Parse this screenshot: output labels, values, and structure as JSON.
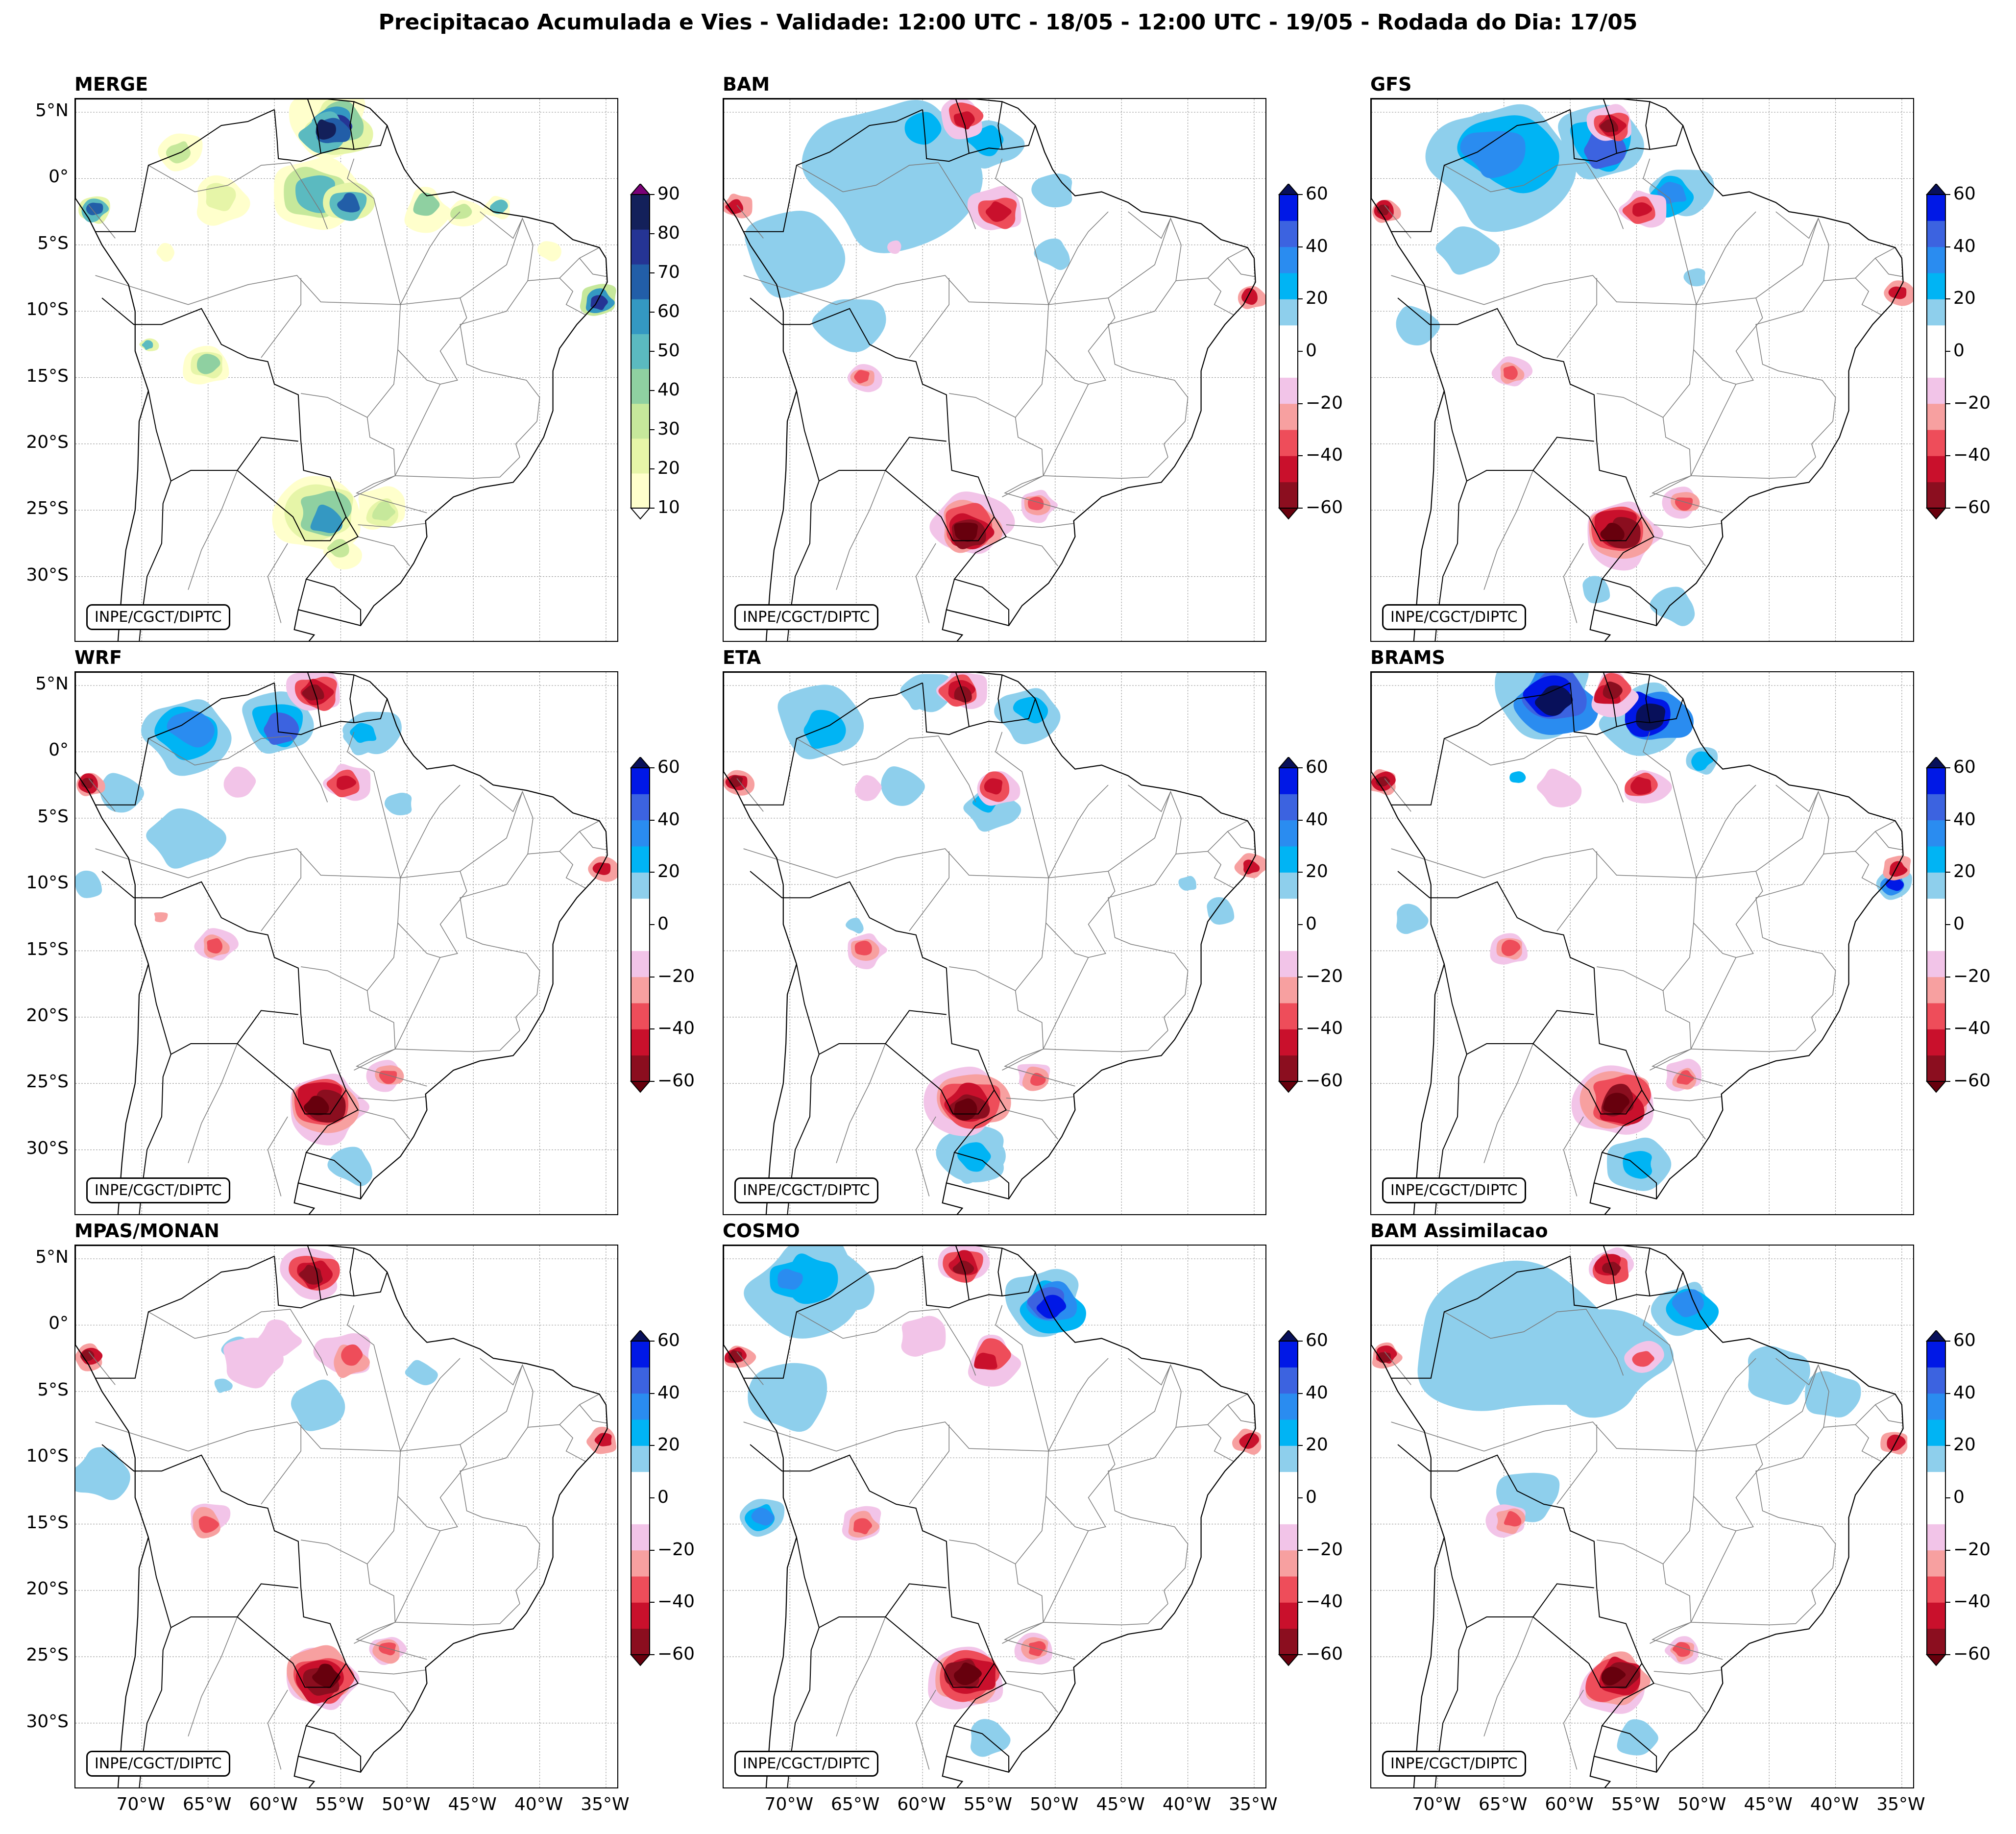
{
  "figure": {
    "title": "Precipitacao Acumulada e Vies - Validade: 12:00 UTC - 18/05 - 12:00 UTC - 19/05 - Rodada do Dia: 17/05",
    "credit": "INPE/CGCT/DIPTC"
  },
  "axes": {
    "lat_labels": [
      "5°N",
      "0°",
      "5°S",
      "10°S",
      "15°S",
      "20°S",
      "25°S",
      "30°S"
    ],
    "lon_labels": [
      "70°W",
      "65°W",
      "60°W",
      "55°W",
      "50°W",
      "45°W",
      "40°W",
      "35°W"
    ]
  },
  "scales": {
    "precip": {
      "ticks": [
        "90",
        "80",
        "70",
        "60",
        "50",
        "40",
        "30",
        "20",
        "10"
      ],
      "colors": [
        "#ffffcc",
        "#e6f5a8",
        "#c6e89b",
        "#8fd0a1",
        "#5bbac0",
        "#3498c2",
        "#225ea8",
        "#253494",
        "#13205a"
      ],
      "under": "#ffffff",
      "over": "#7a0177"
    },
    "bias": {
      "ticks": [
        "60",
        "40",
        "20",
        "0",
        "−20",
        "−40",
        "−60"
      ],
      "colors": [
        "#8b0e1f",
        "#c9102c",
        "#ee4d5a",
        "#f7a0a0",
        "#f2c4e8",
        "#ffffff",
        "#ffffff",
        "#8ecfec",
        "#00b4f4",
        "#2a8cf0",
        "#3c63e0",
        "#0018e6"
      ],
      "under": "#67000d",
      "over": "#08105a"
    }
  },
  "panels": [
    {
      "title": "MERGE",
      "type": "precip"
    },
    {
      "title": "BAM",
      "type": "bias"
    },
    {
      "title": "GFS",
      "type": "bias"
    },
    {
      "title": "WRF",
      "type": "bias"
    },
    {
      "title": "ETA",
      "type": "bias"
    },
    {
      "title": "BRAMS",
      "type": "bias"
    },
    {
      "title": "MPAS/MONAN",
      "type": "bias"
    },
    {
      "title": "COSMO",
      "type": "bias"
    },
    {
      "title": "BAM Assimilacao",
      "type": "bias"
    }
  ]
}
